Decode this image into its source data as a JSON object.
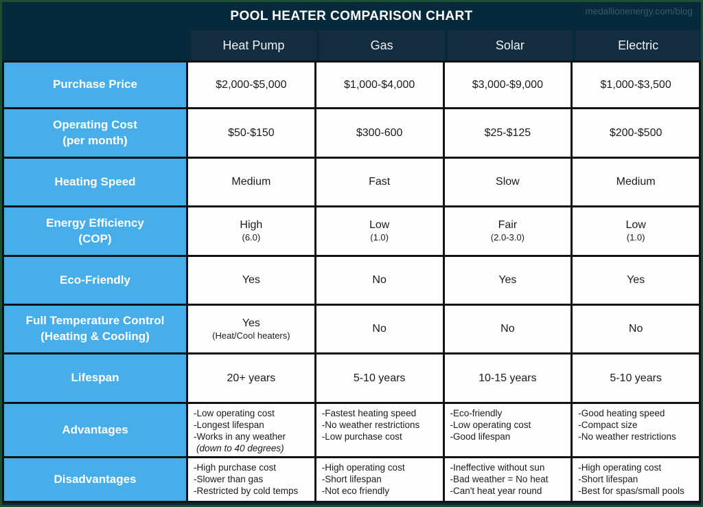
{
  "page": {
    "watermark": "medallionenergy.com/blog"
  },
  "colors": {
    "navy_background": "#062a3b",
    "header_cell_navy": "#132c3f",
    "row_label_blue": "#47aeea",
    "outer_green_border": "#1d4e35",
    "grid_line_black": "#121212",
    "cell_white": "#fdfdfd"
  },
  "chart_data": {
    "type": "table",
    "title": "POOL HEATER COMPARISON CHART",
    "columns": [
      "Heat Pump",
      "Gas",
      "Solar",
      "Electric"
    ],
    "rows": [
      {
        "label": "Purchase Price",
        "cells": [
          {
            "main": "$2,000-$5,000"
          },
          {
            "main": "$1,000-$4,000"
          },
          {
            "main": "$3,000-$9,000"
          },
          {
            "main": "$1,000-$3,500"
          }
        ]
      },
      {
        "label": "Operating Cost",
        "sub": "(per month)",
        "cells": [
          {
            "main": "$50-$150"
          },
          {
            "main": "$300-600"
          },
          {
            "main": "$25-$125"
          },
          {
            "main": "$200-$500"
          }
        ]
      },
      {
        "label": "Heating Speed",
        "cells": [
          {
            "main": "Medium"
          },
          {
            "main": "Fast"
          },
          {
            "main": "Slow"
          },
          {
            "main": "Medium"
          }
        ]
      },
      {
        "label": "Energy Efficiency",
        "sub": "(COP)",
        "cells": [
          {
            "main": "High",
            "note": "(6.0)"
          },
          {
            "main": "Low",
            "note": "(1.0)"
          },
          {
            "main": "Fair",
            "note": "(2.0-3.0)"
          },
          {
            "main": "Low",
            "note": "(1.0)"
          }
        ]
      },
      {
        "label": "Eco-Friendly",
        "cells": [
          {
            "main": "Yes"
          },
          {
            "main": "No"
          },
          {
            "main": "Yes"
          },
          {
            "main": "Yes"
          }
        ]
      },
      {
        "label": "Full Temperature Control",
        "sub": "(Heating & Cooling)",
        "cells": [
          {
            "main": "Yes",
            "note": "(Heat/Cool heaters)"
          },
          {
            "main": "No"
          },
          {
            "main": "No"
          },
          {
            "main": "No"
          }
        ]
      },
      {
        "label": "Lifespan",
        "cells": [
          {
            "main": "20+ years"
          },
          {
            "main": "5-10 years"
          },
          {
            "main": "10-15 years"
          },
          {
            "main": "5-10 years"
          }
        ]
      },
      {
        "label": "Advantages",
        "cells": [
          {
            "lines": [
              "-Low operating cost",
              "-Longest lifespan",
              "-Works in any weather"
            ],
            "italic_note": "(down to 40 degrees)"
          },
          {
            "lines": [
              "-Fastest heating speed",
              "-No weather restrictions",
              "-Low purchase cost"
            ]
          },
          {
            "lines": [
              "-Eco-friendly",
              "-Low operating cost",
              "-Good lifespan"
            ]
          },
          {
            "lines": [
              "-Good heating speed",
              "-Compact size",
              "-No weather restrictions"
            ]
          }
        ]
      },
      {
        "label": "Disadvantages",
        "cells": [
          {
            "lines": [
              "-High purchase cost",
              "-Slower than gas",
              "-Restricted by cold temps"
            ]
          },
          {
            "lines": [
              "-High operating cost",
              "-Short lifespan",
              "-Not eco friendly"
            ]
          },
          {
            "lines": [
              "-Ineffective without sun",
              "-Bad weather = No heat",
              "-Can't heat year round"
            ]
          },
          {
            "lines": [
              "-High operating cost",
              "-Short lifespan",
              "-Best for spas/small pools"
            ]
          }
        ]
      }
    ]
  }
}
